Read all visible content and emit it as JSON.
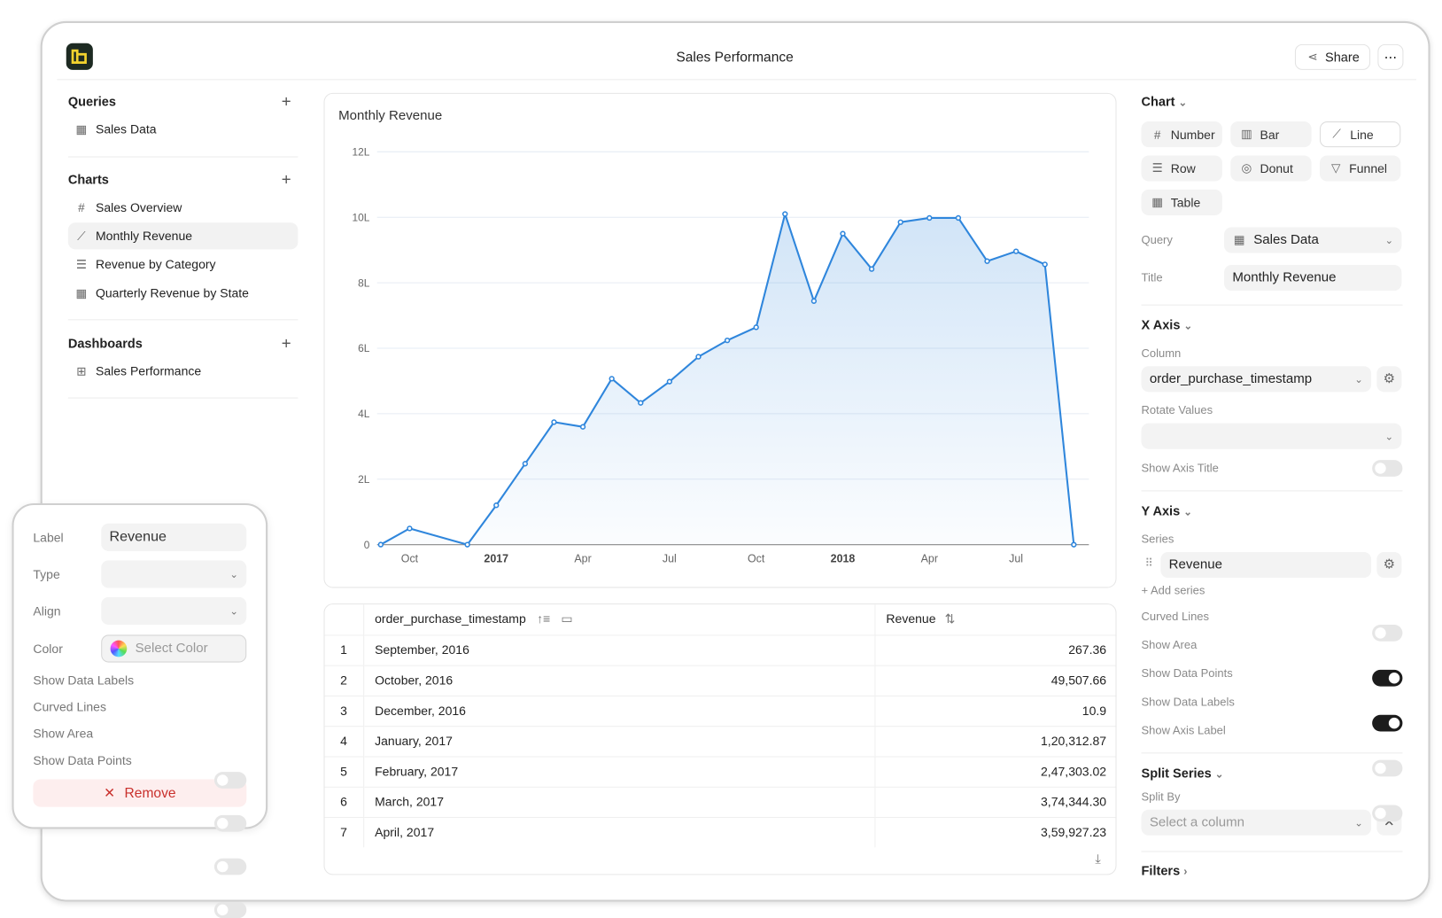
{
  "header": {
    "title": "Sales Performance",
    "share_label": "Share",
    "more_icon": "more-horizontal-icon"
  },
  "sidebar": {
    "queries": {
      "title": "Queries",
      "items": [
        {
          "label": "Sales Data",
          "icon": "table-icon"
        }
      ]
    },
    "charts": {
      "title": "Charts",
      "items": [
        {
          "label": "Sales Overview",
          "icon": "hash-icon"
        },
        {
          "label": "Monthly Revenue",
          "icon": "line-chart-icon",
          "selected": true
        },
        {
          "label": "Revenue by Category",
          "icon": "row-chart-icon"
        },
        {
          "label": "Quarterly Revenue by State",
          "icon": "table-icon"
        }
      ]
    },
    "dashboards": {
      "title": "Dashboards",
      "items": [
        {
          "label": "Sales Performance",
          "icon": "dashboard-icon"
        }
      ]
    }
  },
  "chart_data": {
    "type": "area",
    "title": "Monthly Revenue",
    "x": [
      "2016-09",
      "2016-10",
      "2016-12",
      "2017-01",
      "2017-02",
      "2017-03",
      "2017-04",
      "2017-05",
      "2017-06",
      "2017-07",
      "2017-08",
      "2017-09",
      "2017-10",
      "2017-11",
      "2017-12",
      "2018-01",
      "2018-02",
      "2018-03",
      "2018-04",
      "2018-05",
      "2018-06",
      "2018-07",
      "2018-08",
      "2018-09"
    ],
    "series": [
      {
        "name": "Revenue",
        "values": [
          267,
          49508,
          11,
          120313,
          247303,
          374344,
          359927,
          507000,
          433000,
          498000,
          574000,
          624000,
          664000,
          1010000,
          744000,
          950000,
          842000,
          985000,
          998000,
          998000,
          866000,
          896000,
          856000,
          0
        ]
      }
    ],
    "y_ticks": [
      "0",
      "2L",
      "4L",
      "6L",
      "8L",
      "10L",
      "12L"
    ],
    "ylim": [
      0,
      1200000
    ],
    "x_ticks": [
      {
        "label": "Oct",
        "at": "2016-10",
        "bold": false
      },
      {
        "label": "2017",
        "at": "2017-01",
        "bold": true
      },
      {
        "label": "Apr",
        "at": "2017-04",
        "bold": false
      },
      {
        "label": "Jul",
        "at": "2017-07",
        "bold": false
      },
      {
        "label": "Oct",
        "at": "2017-10",
        "bold": false
      },
      {
        "label": "2018",
        "at": "2018-01",
        "bold": true
      },
      {
        "label": "Apr",
        "at": "2018-04",
        "bold": false
      },
      {
        "label": "Jul",
        "at": "2018-07",
        "bold": false
      }
    ],
    "grid": true,
    "show_area": true,
    "show_points": true,
    "color": "#2f86dc"
  },
  "table": {
    "columns": [
      "order_purchase_timestamp",
      "Revenue"
    ],
    "rows": [
      [
        "1",
        "September, 2016",
        "267.36"
      ],
      [
        "2",
        "October, 2016",
        "49,507.66"
      ],
      [
        "3",
        "December, 2016",
        "10.9"
      ],
      [
        "4",
        "January, 2017",
        "1,20,312.87"
      ],
      [
        "5",
        "February, 2017",
        "2,47,303.02"
      ],
      [
        "6",
        "March, 2017",
        "3,74,344.30"
      ],
      [
        "7",
        "April, 2017",
        "3,59,927.23"
      ]
    ]
  },
  "panel": {
    "chart_title": "Chart",
    "types": [
      {
        "label": "Number",
        "icon": "#"
      },
      {
        "label": "Bar",
        "icon": "▥"
      },
      {
        "label": "Line",
        "icon": "⟋",
        "selected": true
      },
      {
        "label": "Row",
        "icon": "☰"
      },
      {
        "label": "Donut",
        "icon": "◎"
      },
      {
        "label": "Funnel",
        "icon": "▽"
      },
      {
        "label": "Table",
        "icon": "▦"
      }
    ],
    "query_label": "Query",
    "query_value": "Sales Data",
    "title_label": "Title",
    "title_value": "Monthly Revenue",
    "xaxis": {
      "title": "X Axis",
      "column_label": "Column",
      "column_value": "order_purchase_timestamp",
      "rotate_label": "Rotate Values",
      "rotate_value": "",
      "show_axis_title": "Show Axis Title"
    },
    "yaxis": {
      "title": "Y Axis",
      "series_label": "Series",
      "series_value": "Revenue",
      "add_series": "+ Add series",
      "toggles": [
        {
          "label": "Curved Lines",
          "on": false
        },
        {
          "label": "Show Area",
          "on": true
        },
        {
          "label": "Show Data Points",
          "on": true
        },
        {
          "label": "Show Data Labels",
          "on": false
        },
        {
          "label": "Show Axis Label",
          "on": false
        }
      ]
    },
    "split": {
      "title": "Split Series",
      "by_label": "Split By",
      "placeholder": "Select a column"
    },
    "filters": "Filters"
  },
  "popup": {
    "label_label": "Label",
    "label_value": "Revenue",
    "type_label": "Type",
    "align_label": "Align",
    "color_label": "Color",
    "color_placeholder": "Select Color",
    "toggles": [
      {
        "label": "Show Data Labels",
        "on": false
      },
      {
        "label": "Curved Lines",
        "on": false
      },
      {
        "label": "Show Area",
        "on": false
      },
      {
        "label": "Show Data Points",
        "on": false
      }
    ],
    "remove_label": "Remove"
  }
}
